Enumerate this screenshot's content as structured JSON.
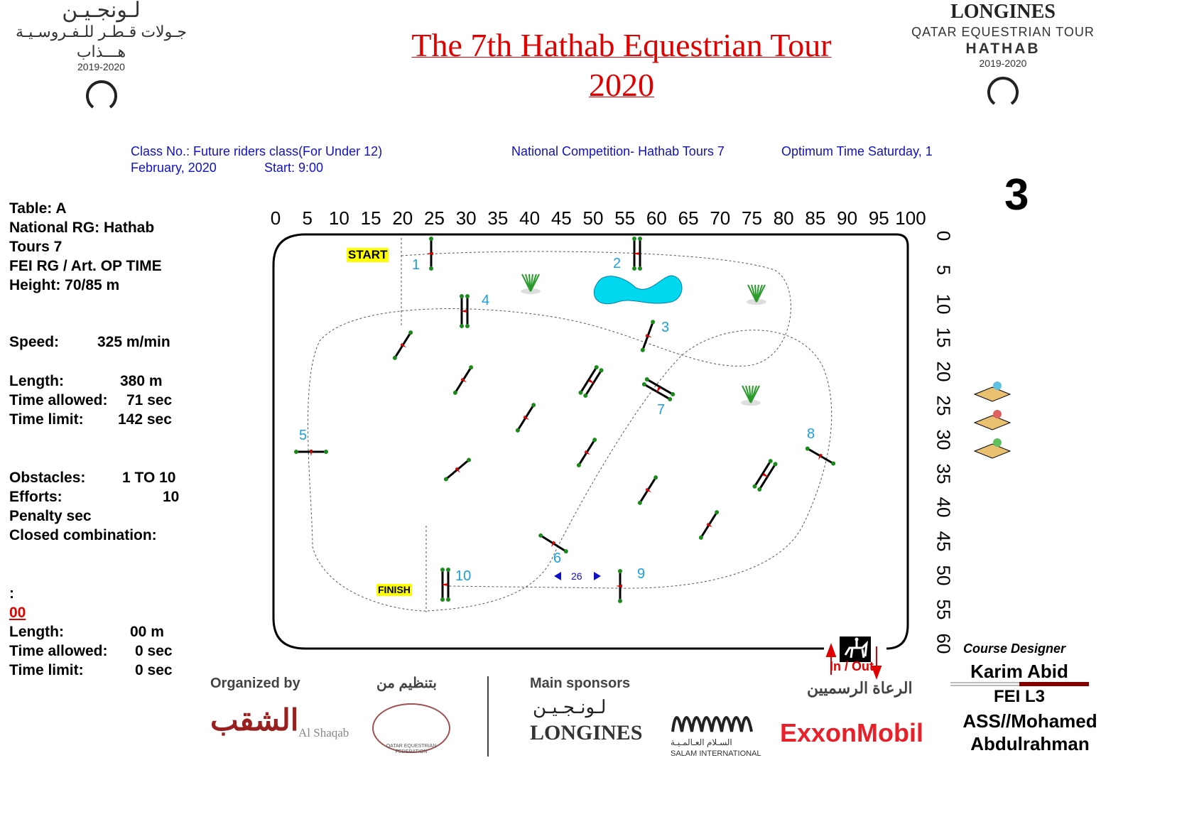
{
  "header": {
    "title_line1": "The 7th Hathab Equestrian Tour",
    "title_line2": "2020",
    "class_line1": "Class No.: Future riders class(For Under 12)",
    "class_line2_date": "February, 2020",
    "class_line2_start": "Start: 9:00",
    "competition": "National Competition- Hathab Tours 7",
    "optimum": "Optimum Time Saturday, 1"
  },
  "logo_left": {
    "arabic1": "لـونجـيـن",
    "arabic2": "جـولات قـطـر للـفـروسـيـة",
    "arabic3": "هـــذاب",
    "years": "2019-2020"
  },
  "logo_right": {
    "brand": "LONGINES",
    "tour": "QATAR EQUESTRIAN TOUR",
    "name": "HATHAB",
    "years": "2019-2020"
  },
  "round_number": "3",
  "stats": {
    "table": "Table: A",
    "national_rg": "National RG:  Hathab",
    "tours": "Tours 7",
    "fei_rg": "FEI RG / Art. OP TIME",
    "height": "Height: 70/85  m",
    "speed_label": "Speed:",
    "speed_value": "325  m/min",
    "length_label": "Length:",
    "length_value": "380    m",
    "time_allowed_label": "Time allowed:",
    "time_allowed_value": "71  sec",
    "time_limit_label": "Time limit:",
    "time_limit_value": "142  sec",
    "obstacles_label": "Obstacles:",
    "obstacles_value": "1 TO 10",
    "efforts_label": "Efforts:",
    "efforts_value": "10",
    "penalty": "Penalty sec",
    "closed": "Closed combination:",
    "colon": ":",
    "jumpoff": "00",
    "length2_label": "Length:",
    "length2_value": "00    m",
    "time_allowed2_label": "Time allowed:",
    "time_allowed2_value": "0  sec",
    "time_limit2_label": "Time limit:",
    "time_limit2_value": "0  sec"
  },
  "axis_top": [
    "0",
    "5",
    "10",
    "15",
    "20",
    "25",
    "30",
    "35",
    "40",
    "45",
    "50",
    "55",
    "60",
    "65",
    "70",
    "75",
    "80",
    "85",
    "90",
    "95",
    "100"
  ],
  "axis_right": [
    "0",
    "5",
    "10",
    "15",
    "20",
    "25",
    "30",
    "35",
    "40",
    "45",
    "50",
    "55",
    "60"
  ],
  "arena": {
    "start": "START",
    "finish": "FINISH",
    "distance": "26",
    "in_out": "In / Out",
    "obstacle_numbers": [
      "1",
      "2",
      "3",
      "4",
      "5",
      "6",
      "7",
      "8",
      "9",
      "10"
    ]
  },
  "colors": {
    "title": "#e00000",
    "info": "#1010c8",
    "numbers": "#1aa0e0",
    "water": "#00d8f0",
    "fence_end": "#1a8a1a"
  },
  "footer": {
    "organized_by": "Organized by",
    "organized_ar": "بتنظيم من",
    "main_sponsors": "Main sponsors",
    "sponsors_ar": "الرعاة الرسميين",
    "alshaqab": "Al Shaqab",
    "alshaqab_ar": "الشقب",
    "qef": "QATAR EQUESTRIAN FEDERATION",
    "longines": "LONGINES",
    "longines_ar": "لـونـجـيـن",
    "salam": "SALAM INTERNATIONAL",
    "salam_ar": "السـلام العـالمـيـة",
    "exxon": "ExxonMobil"
  },
  "designer": {
    "label": "Course Designer",
    "name": "Karim Abid",
    "level": "FEI L3",
    "assistant1": "ASS//Mohamed",
    "assistant2": "Abdulrahman"
  }
}
